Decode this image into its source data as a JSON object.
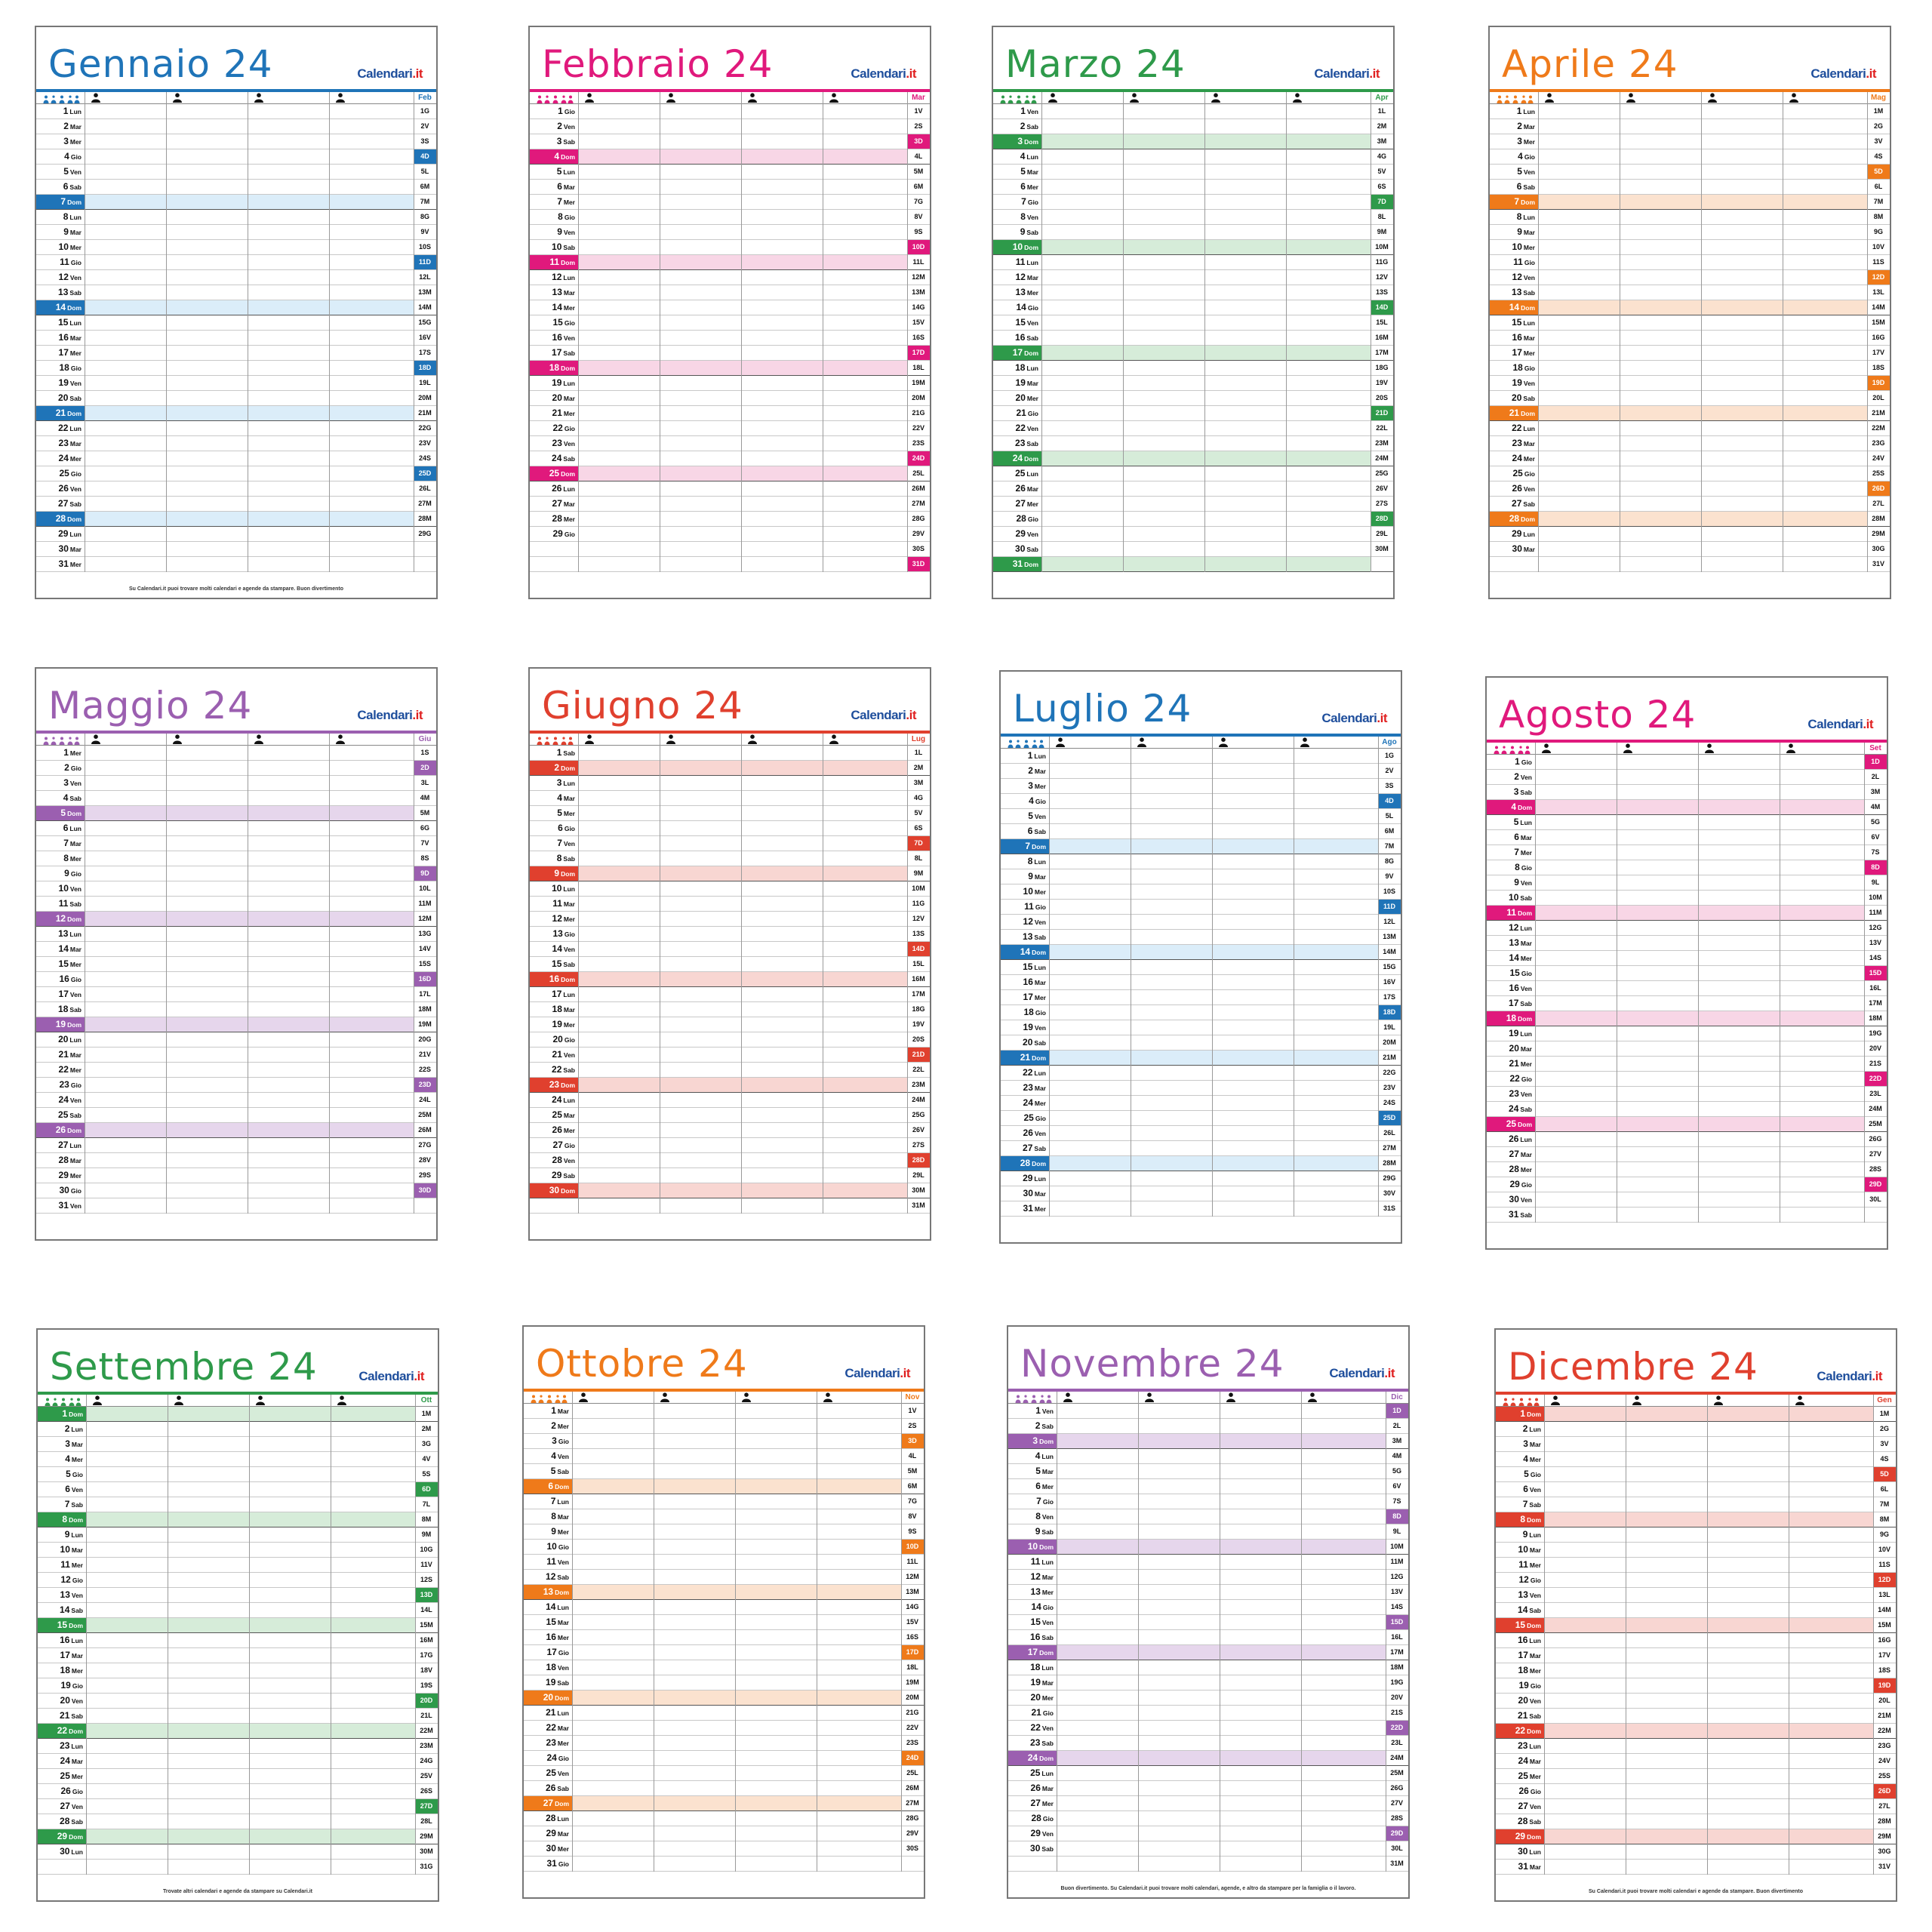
{
  "brand": {
    "name": "Calendari",
    "suffix": ".it"
  },
  "months": [
    {
      "title": "Gennaio 24",
      "color": "#1f74b8",
      "light": "#dbedf9",
      "days": 31,
      "start": 0,
      "weekday_labels": [
        "Lun",
        "Mar",
        "Mer",
        "Gio",
        "Ven",
        "Sab",
        "Dom"
      ],
      "next_month": "Feb",
      "next_days": 29,
      "next_start": 3,
      "footer": "Su Calendari.it puoi trovare molti calendari e agende da stampare. Buon divertimento"
    },
    {
      "title": "Febbraio 24",
      "color": "#e0197c",
      "light": "#f8d6e6",
      "days": 29,
      "start": 3,
      "weekday_labels": [
        "Lun",
        "Mar",
        "Mer",
        "Gio",
        "Ven",
        "Sab",
        "Dom"
      ],
      "next_month": "Mar",
      "next_days": 31,
      "next_start": 4,
      "footer": ""
    },
    {
      "title": "Marzo 24",
      "color": "#2e9a4a",
      "light": "#d6ecd9",
      "days": 31,
      "start": 4,
      "weekday_labels": [
        "Lun",
        "Mar",
        "Mer",
        "Gio",
        "Ven",
        "Sab",
        "Dom"
      ],
      "next_month": "Apr",
      "next_days": 30,
      "next_start": 0,
      "footer": ""
    },
    {
      "title": "Aprile 24",
      "color": "#ef7a1a",
      "light": "#fbe2cf",
      "days": 30,
      "start": 0,
      "weekday_labels": [
        "Lun",
        "Mar",
        "Mer",
        "Gio",
        "Ven",
        "Sab",
        "Dom"
      ],
      "next_month": "Mag",
      "next_days": 31,
      "next_start": 2,
      "footer": ""
    },
    {
      "title": "Maggio 24",
      "color": "#9b5fb0",
      "light": "#e6d6ec",
      "days": 31,
      "start": 2,
      "weekday_labels": [
        "Lun",
        "Mar",
        "Mer",
        "Gio",
        "Ven",
        "Sab",
        "Dom"
      ],
      "next_month": "Giu",
      "next_days": 30,
      "next_start": 5,
      "footer": ""
    },
    {
      "title": "Giugno 24",
      "color": "#e0402e",
      "light": "#f8d6d2",
      "days": 30,
      "start": 5,
      "weekday_labels": [
        "Lun",
        "Mar",
        "Mer",
        "Gio",
        "Ven",
        "Sab",
        "Dom"
      ],
      "next_month": "Lug",
      "next_days": 31,
      "next_start": 0,
      "footer": ""
    },
    {
      "title": "Luglio 24",
      "color": "#1f74b8",
      "light": "#dbedf9",
      "days": 31,
      "start": 0,
      "weekday_labels": [
        "Lun",
        "Mar",
        "Mer",
        "Gio",
        "Ven",
        "Sab",
        "Dom"
      ],
      "next_month": "Ago",
      "next_days": 31,
      "next_start": 3,
      "footer": ""
    },
    {
      "title": "Agosto 24",
      "color": "#e0197c",
      "light": "#f8d6e6",
      "days": 31,
      "start": 3,
      "weekday_labels": [
        "Lun",
        "Mar",
        "Mer",
        "Gio",
        "Ven",
        "Sab",
        "Dom"
      ],
      "next_month": "Set",
      "next_days": 30,
      "next_start": 6,
      "footer": ""
    },
    {
      "title": "Settembre 24",
      "color": "#2e9a4a",
      "light": "#d6ecd9",
      "days": 30,
      "start": 6,
      "weekday_labels": [
        "Lun",
        "Mar",
        "Mer",
        "Gio",
        "Ven",
        "Sab",
        "Dom"
      ],
      "next_month": "Ott",
      "next_days": 31,
      "next_start": 1,
      "footer": "Trovate altri calendari e agende da stampare su Calendari.it"
    },
    {
      "title": "Ottobre 24",
      "color": "#ef7a1a",
      "light": "#fbe2cf",
      "days": 31,
      "start": 1,
      "weekday_labels": [
        "Lun",
        "Mar",
        "Mer",
        "Gio",
        "Ven",
        "Sab",
        "Dom"
      ],
      "next_month": "Nov",
      "next_days": 30,
      "next_start": 4,
      "footer": ""
    },
    {
      "title": "Novembre 24",
      "color": "#9b5fb0",
      "light": "#e6d6ec",
      "days": 30,
      "start": 4,
      "weekday_labels": [
        "Lun",
        "Mar",
        "Mer",
        "Gio",
        "Ven",
        "Sab",
        "Dom"
      ],
      "next_month": "Dic",
      "next_days": 31,
      "next_start": 6,
      "footer": "Buon divertimento. Su Calendari.it puoi trovare molti calendari, agende, e altro da stampare per la famiglia o il lavoro."
    },
    {
      "title": "Dicembre 24",
      "color": "#e0402e",
      "light": "#f8d6d2",
      "days": 31,
      "start": 6,
      "weekday_labels": [
        "Lun",
        "Mar",
        "Mer",
        "Gio",
        "Ven",
        "Sab",
        "Dom"
      ],
      "next_month": "Gen",
      "next_days": 31,
      "next_start": 2,
      "footer": "Su Calendari.it puoi trovare molti calendari e agende da stampare. Buon divertimento"
    }
  ],
  "next_weekday_letters": [
    "L",
    "M",
    "M",
    "G",
    "V",
    "S",
    "D"
  ],
  "icons": {
    "family": "family-icon",
    "person": "person-icon",
    "moon": "moon-phase-icon"
  }
}
